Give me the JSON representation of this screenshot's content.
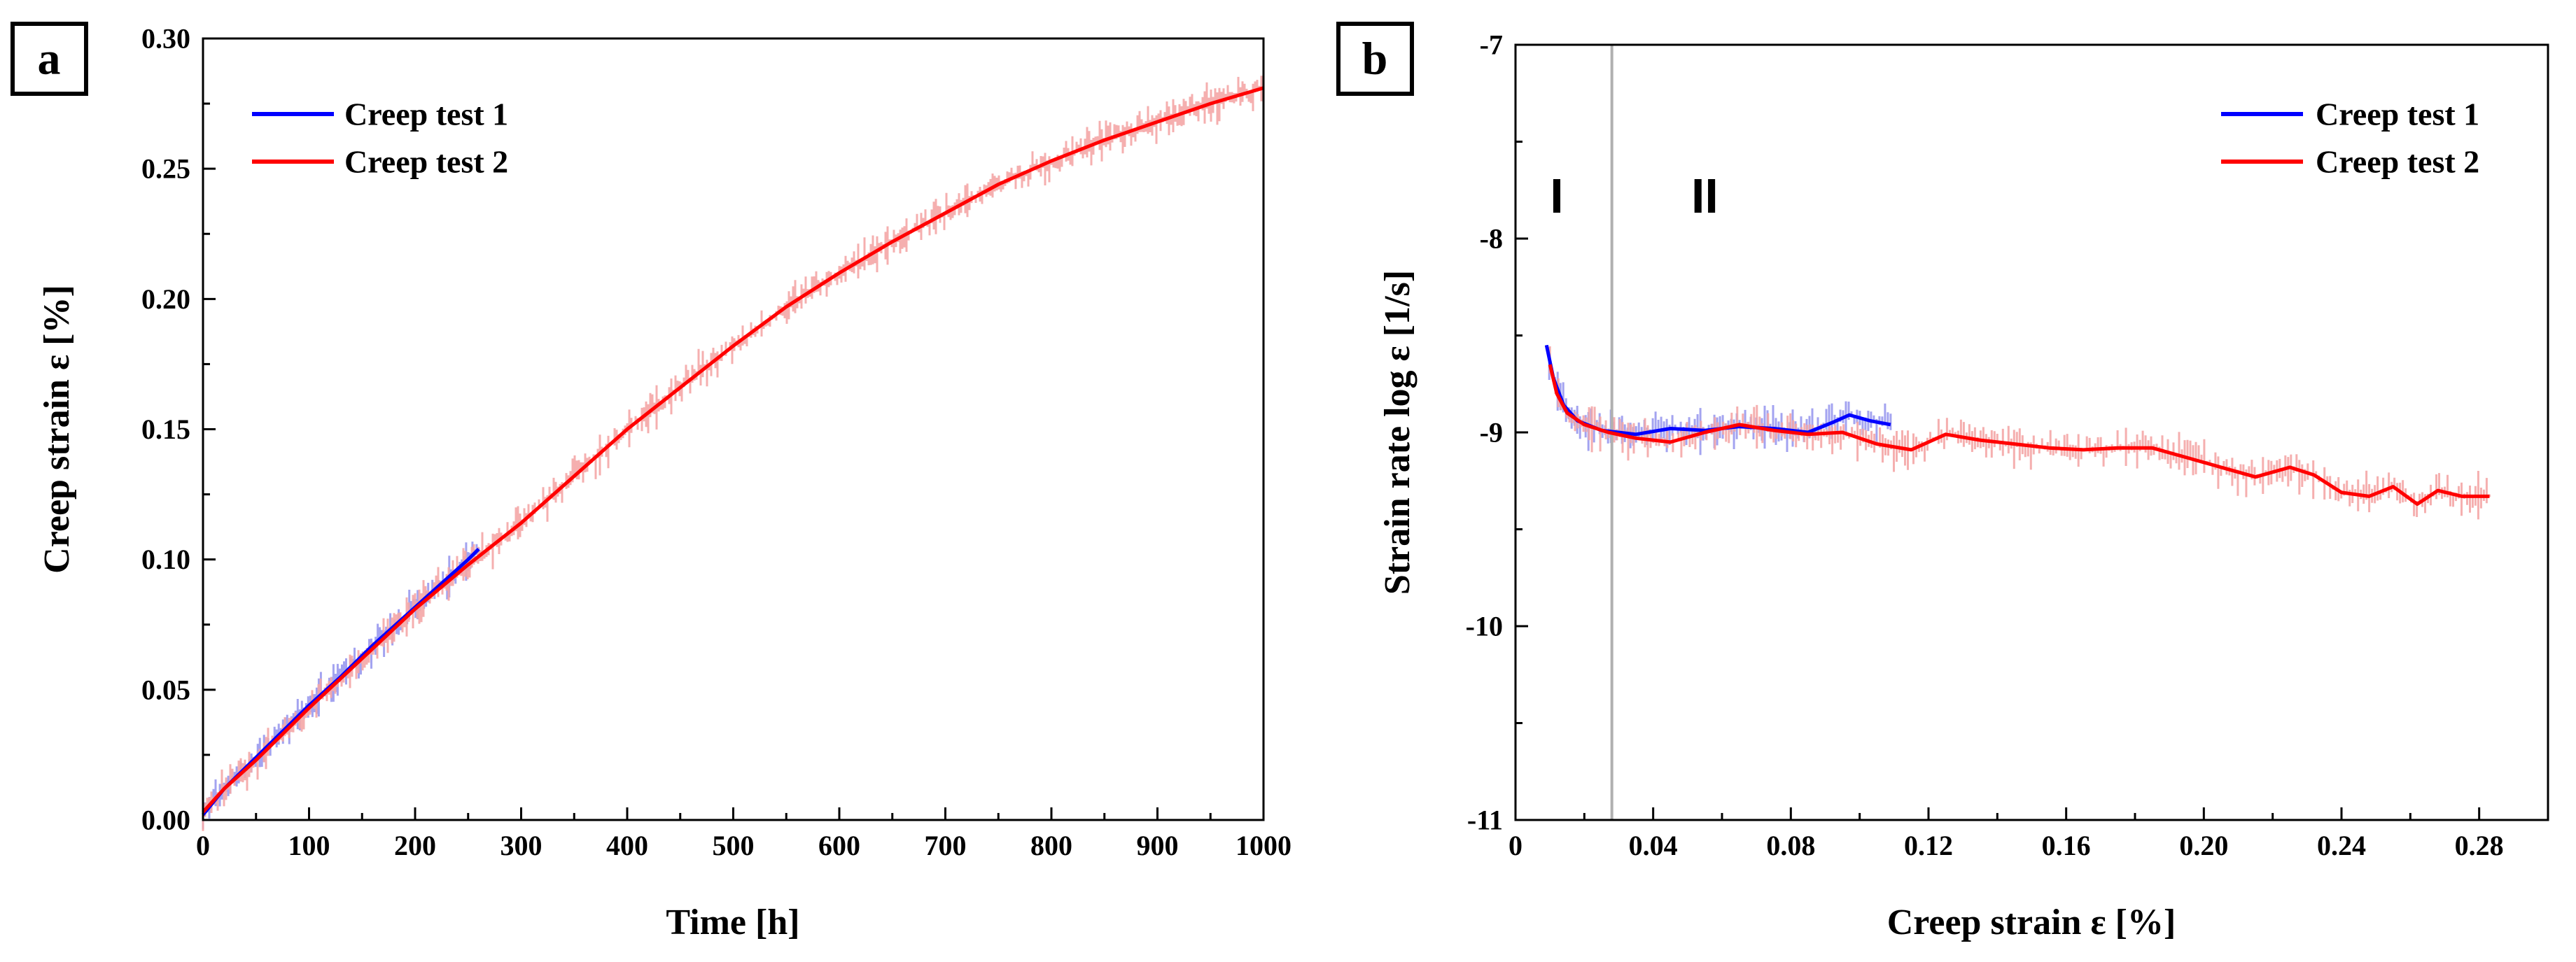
{
  "chart_data": [
    {
      "panel": "a",
      "type": "line",
      "xlabel": "Time [h]",
      "ylabel": "Creep strain ε [%]",
      "xlim": [
        0,
        1000
      ],
      "ylim": [
        0,
        0.3
      ],
      "xticks": [
        0,
        100,
        200,
        300,
        400,
        500,
        600,
        700,
        800,
        900,
        1000
      ],
      "xtick_labels": [
        "0",
        "100",
        "200",
        "300",
        "400",
        "500",
        "600",
        "700",
        "800",
        "900",
        "1000"
      ],
      "yticks": [
        0,
        0.05,
        0.1,
        0.15,
        0.2,
        0.25,
        0.3
      ],
      "ytick_labels": [
        "0.00",
        "0.05",
        "0.10",
        "0.15",
        "0.20",
        "0.25",
        "0.30"
      ],
      "legend_position": "top-left",
      "grid": false,
      "series": [
        {
          "name": "Creep test 1",
          "color": "#0000ff",
          "noise_color": "#9999ee",
          "x": [
            0,
            20,
            50,
            80,
            100,
            130,
            160,
            190,
            220,
            250,
            260
          ],
          "y": [
            0.002,
            0.012,
            0.024,
            0.036,
            0.044,
            0.055,
            0.067,
            0.078,
            0.089,
            0.1,
            0.104
          ]
        },
        {
          "name": "Creep test 2",
          "color": "#ff0000",
          "noise_color": "#f4a6a6",
          "x": [
            0,
            20,
            50,
            100,
            150,
            200,
            250,
            300,
            350,
            400,
            450,
            500,
            550,
            600,
            650,
            700,
            750,
            800,
            850,
            900,
            950,
            1000
          ],
          "y": [
            0.003,
            0.012,
            0.023,
            0.043,
            0.062,
            0.081,
            0.098,
            0.114,
            0.132,
            0.15,
            0.166,
            0.182,
            0.197,
            0.21,
            0.222,
            0.233,
            0.244,
            0.253,
            0.261,
            0.268,
            0.275,
            0.281
          ]
        }
      ]
    },
    {
      "panel": "b",
      "type": "line",
      "xlabel": "Creep strain ε [%]",
      "ylabel": "Strain rate  log ε  [1/s]",
      "xlim": [
        0,
        0.3
      ],
      "ylim": [
        -11,
        -7
      ],
      "xticks": [
        0,
        0.04,
        0.08,
        0.12,
        0.16,
        0.2,
        0.24,
        0.28
      ],
      "xtick_labels": [
        "0",
        "0.04",
        "0.08",
        "0.12",
        "0.16",
        "0.20",
        "0.24",
        "0.28"
      ],
      "yticks": [
        -11,
        -10,
        -9,
        -8,
        -7
      ],
      "ytick_labels": [
        "-11",
        "-10",
        "-9",
        "-8",
        "-7"
      ],
      "legend_position": "top-right",
      "grid": false,
      "divider_x": 0.028,
      "regions": [
        {
          "label": "I",
          "x": 0.012,
          "y": -7.78
        },
        {
          "label": "II",
          "x": 0.055,
          "y": -7.78
        }
      ],
      "series": [
        {
          "name": "Creep test 1",
          "color": "#0000ff",
          "noise_color": "#9999ee",
          "x": [
            0.009,
            0.011,
            0.014,
            0.018,
            0.025,
            0.035,
            0.045,
            0.055,
            0.065,
            0.075,
            0.085,
            0.092,
            0.097,
            0.103,
            0.109
          ],
          "y": [
            -8.55,
            -8.72,
            -8.86,
            -8.94,
            -8.99,
            -9.01,
            -8.98,
            -8.99,
            -8.97,
            -8.98,
            -9.0,
            -8.95,
            -8.91,
            -8.94,
            -8.96
          ]
        },
        {
          "name": "Creep test 2",
          "color": "#ff0000",
          "noise_color": "#f4a6a6",
          "x": [
            0.01,
            0.012,
            0.015,
            0.02,
            0.027,
            0.035,
            0.045,
            0.055,
            0.065,
            0.075,
            0.085,
            0.095,
            0.105,
            0.115,
            0.125,
            0.135,
            0.145,
            0.155,
            0.165,
            0.175,
            0.185,
            0.195,
            0.205,
            0.215,
            0.225,
            0.232,
            0.24,
            0.248,
            0.255,
            0.262,
            0.268,
            0.275,
            0.283
          ],
          "y": [
            -8.65,
            -8.8,
            -8.9,
            -8.96,
            -9.0,
            -9.03,
            -9.05,
            -9.0,
            -8.96,
            -8.99,
            -9.01,
            -9.0,
            -9.06,
            -9.09,
            -9.01,
            -9.04,
            -9.06,
            -9.08,
            -9.09,
            -9.08,
            -9.08,
            -9.13,
            -9.18,
            -9.23,
            -9.18,
            -9.22,
            -9.31,
            -9.33,
            -9.28,
            -9.37,
            -9.3,
            -9.33,
            -9.33
          ]
        }
      ]
    }
  ]
}
